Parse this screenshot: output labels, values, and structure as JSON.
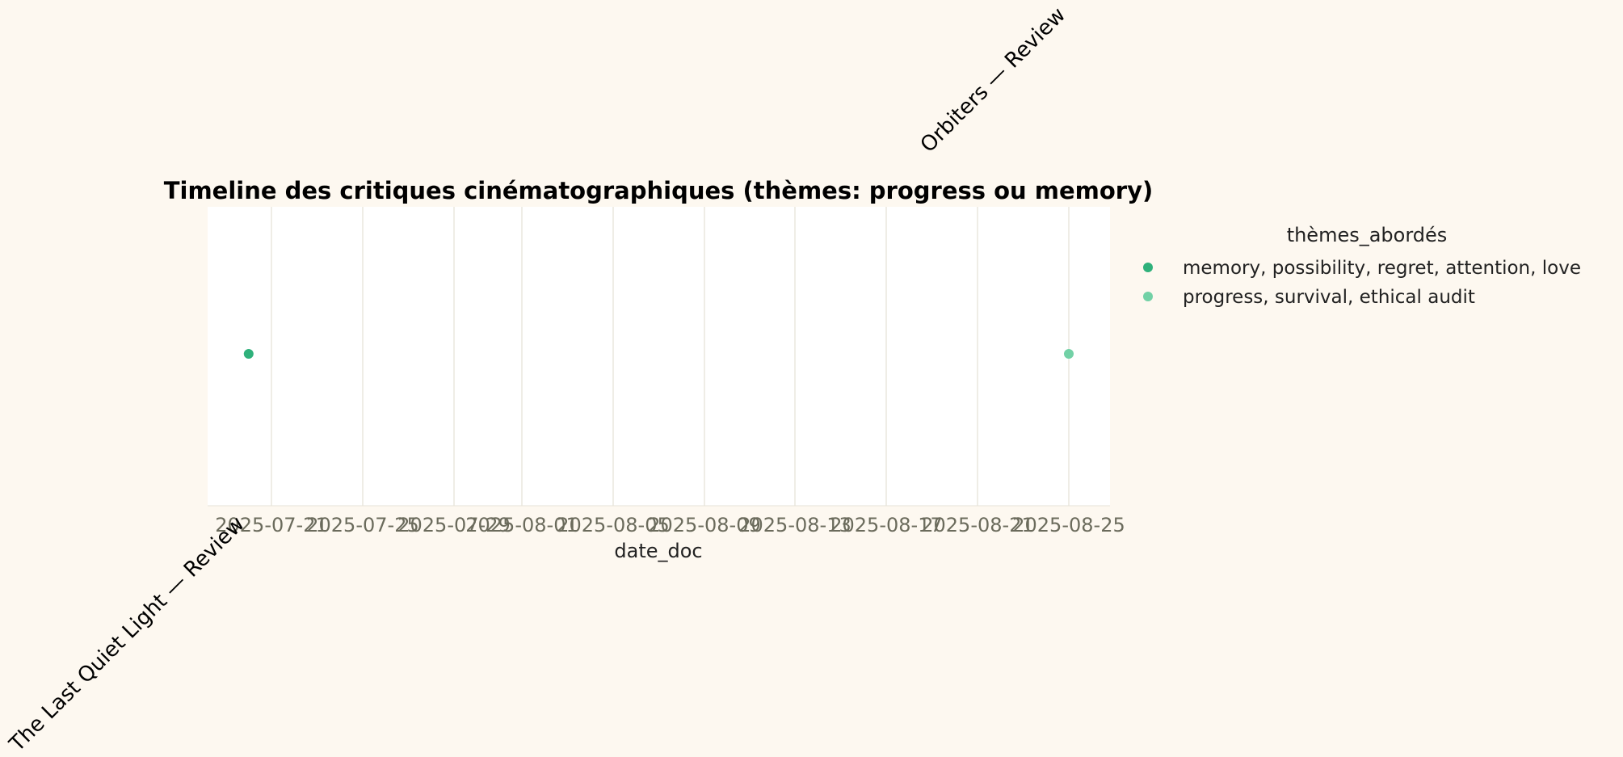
{
  "chart_data": {
    "type": "scatter",
    "title": "Timeline des critiques cinématographiques (thèmes: progress ou memory)",
    "xlabel": "date_doc",
    "ylabel": "",
    "x_ticks": [
      "2025-07-21",
      "2025-07-25",
      "2025-07-29",
      "2025-08-01",
      "2025-08-05",
      "2025-08-09",
      "2025-08-13",
      "2025-08-17",
      "2025-08-21",
      "2025-08-25"
    ],
    "xlim": [
      "2025-07-20",
      "2025-08-27"
    ],
    "grid": "vertical",
    "legend": {
      "title": "thèmes_abordés",
      "position": "right",
      "entries": [
        {
          "label": "memory, possibility, regret, attention, love",
          "color": "#2fb17b"
        },
        {
          "label": "progress, survival, ethical audit",
          "color": "#72d1a6"
        }
      ]
    },
    "points": [
      {
        "x": "2025-07-20",
        "y": 0,
        "label": "The Last Quiet Light — Review",
        "series": 0
      },
      {
        "x": "2025-08-25",
        "y": 0,
        "label": "Orbiters — Review",
        "series": 1
      }
    ]
  }
}
